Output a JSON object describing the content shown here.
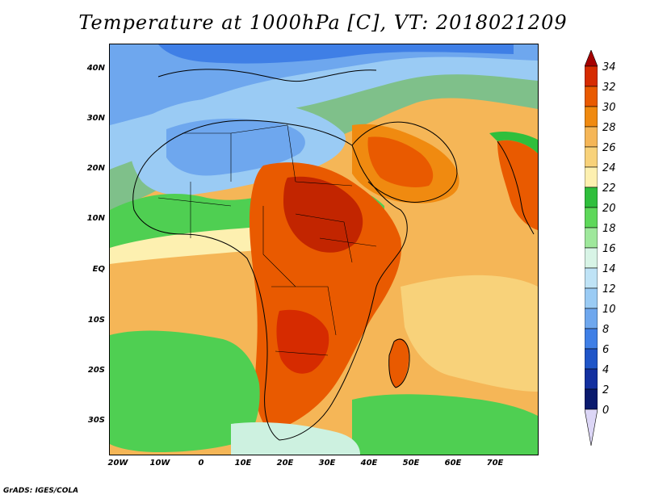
{
  "title": "Temperature at 1000hPa [C], VT: 2018021209",
  "credit": "GrADS: IGES/COLA",
  "y_axis_labels": [
    "40N",
    "30N",
    "20N",
    "10N",
    "EQ",
    "10S",
    "20S",
    "30S"
  ],
  "x_axis_labels": [
    "20W",
    "10W",
    "0",
    "10E",
    "20E",
    "30E",
    "40E",
    "50E",
    "60E",
    "70E"
  ],
  "colorbar": {
    "labels": [
      "34",
      "32",
      "30",
      "28",
      "26",
      "24",
      "22",
      "20",
      "18",
      "16",
      "14",
      "12",
      "10",
      "8",
      "6",
      "4",
      "2",
      "0"
    ],
    "colors": [
      "#a50000",
      "#d62b00",
      "#e95a00",
      "#f08a10",
      "#f5b657",
      "#f8d27a",
      "#fdf0b0",
      "#2fbf3c",
      "#5ed85a",
      "#9fe89c",
      "#d8f4e6",
      "#bfe3f6",
      "#9acbf4",
      "#6ea7ee",
      "#3f7fe6",
      "#1f55c8",
      "#1330a0",
      "#0a1a6e",
      "#dcd6f6"
    ]
  },
  "legend_colors": {
    "c34": "#b01000",
    "c30": "#e65a0c",
    "c28": "#ef8a1a",
    "c26": "#f5b657",
    "c22": "#fcefa8",
    "c20": "#3cc24a",
    "c16": "#cdf1e0",
    "c12": "#a9d4f5",
    "c8": "#6fa7ee",
    "c4": "#2a5ed0"
  }
}
